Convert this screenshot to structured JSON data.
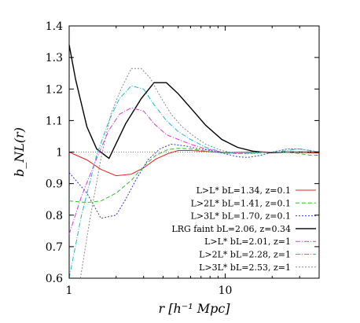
{
  "chart_data": {
    "type": "line",
    "xlabel": "r  [h⁻¹ Mpc]",
    "ylabel": "b_NL(r)",
    "x_scale": "log",
    "xlim": [
      1,
      40
    ],
    "ylim": [
      0.6,
      1.4
    ],
    "x_ticks": [
      1,
      10
    ],
    "x_tick_labels": [
      "1",
      "10"
    ],
    "y_ticks": [
      0.6,
      0.7,
      0.8,
      0.9,
      1.0,
      1.1,
      1.2,
      1.3,
      1.4
    ],
    "y_tick_labels": [
      "0.6",
      "0.7",
      "0.8",
      "0.9",
      "1",
      "1.1",
      "1.2",
      "1.3",
      "1.4"
    ],
    "reference_line": 1.0,
    "legend_position": "bottom-right",
    "series": [
      {
        "name": "L>L* bL=1.34, z=0.1",
        "color": "#e8211d",
        "dash": "solid",
        "x": [
          1.0,
          1.3,
          1.6,
          2.0,
          2.5,
          3.0,
          3.6,
          4.3,
          5.0,
          6.0,
          7.0,
          8.5,
          10,
          12,
          14,
          17,
          20,
          25,
          30,
          35,
          40
        ],
        "y": [
          1.0,
          0.975,
          0.945,
          0.925,
          0.93,
          0.95,
          0.978,
          0.995,
          1.005,
          1.005,
          1.003,
          1.0,
          0.998,
          0.999,
          1.0,
          1.001,
          1.0,
          1.0,
          0.999,
          0.998,
          0.997
        ]
      },
      {
        "name": "L>2L* bL=1.41, z=0.1",
        "color": "#2dbe2d",
        "dash": "dashed",
        "x": [
          1.0,
          1.3,
          1.6,
          2.0,
          2.5,
          3.0,
          3.6,
          4.3,
          5.0,
          6.0,
          7.0,
          8.5,
          10,
          12,
          14,
          17,
          20,
          25,
          30,
          35,
          40
        ],
        "y": [
          0.845,
          0.84,
          0.845,
          0.87,
          0.91,
          0.955,
          0.99,
          1.008,
          1.012,
          1.01,
          1.005,
          1.0,
          0.997,
          0.995,
          0.996,
          0.998,
          1.0,
          1.0,
          0.995,
          0.99,
          0.99
        ]
      },
      {
        "name": "L>3L* bL=1.70, z=0.1",
        "color": "#3535c8",
        "dash": "dotted",
        "x": [
          1.0,
          1.3,
          1.6,
          2.0,
          2.3,
          2.7,
          3.2,
          3.8,
          4.5,
          5.5,
          6.5,
          8.0,
          10,
          12,
          14,
          17,
          20,
          25,
          30,
          35,
          40
        ],
        "y": [
          0.935,
          0.87,
          0.79,
          0.8,
          0.85,
          0.915,
          0.975,
          1.01,
          1.025,
          1.02,
          1.012,
          1.005,
          0.995,
          0.985,
          0.983,
          0.99,
          1.0,
          1.01,
          1.01,
          1.005,
          1.0
        ]
      },
      {
        "name": "LRG faint bL=2.06, z=0.34",
        "color": "#000000",
        "dash": "solid",
        "x": [
          1.0,
          1.1,
          1.3,
          1.5,
          1.8,
          2.3,
          2.9,
          3.5,
          4.2,
          5.0,
          6.0,
          7.5,
          9.5,
          12,
          15,
          19,
          24,
          30,
          40
        ],
        "y": [
          1.34,
          1.23,
          1.08,
          1.01,
          0.98,
          1.09,
          1.17,
          1.22,
          1.22,
          1.185,
          1.14,
          1.085,
          1.04,
          1.015,
          1.003,
          0.998,
          1.0,
          1.0,
          1.0
        ]
      },
      {
        "name": "L>L* bL=2.01, z=1",
        "color": "#d63bd6",
        "dash": "dashdot",
        "x": [
          1.0,
          1.2,
          1.5,
          1.8,
          2.1,
          2.5,
          3.0,
          3.5,
          4.2,
          5.0,
          6.0,
          7.5,
          9.5,
          12,
          15,
          20,
          25,
          30,
          40
        ],
        "y": [
          0.74,
          0.86,
          0.98,
          1.07,
          1.12,
          1.14,
          1.13,
          1.09,
          1.055,
          1.04,
          1.025,
          1.01,
          1.0,
          0.998,
          1.0,
          1.0,
          1.0,
          1.0,
          1.0
        ]
      },
      {
        "name": "L>2L* bL=2.28, z=1",
        "color": "#1fb7d4",
        "dash": "dashdot",
        "x": [
          1.0,
          1.2,
          1.5,
          1.8,
          2.1,
          2.5,
          3.0,
          3.5,
          4.2,
          5.0,
          6.0,
          7.5,
          9.5,
          12,
          15,
          20,
          25,
          30,
          35,
          40
        ],
        "y": [
          0.6,
          0.8,
          0.99,
          1.1,
          1.17,
          1.21,
          1.2,
          1.15,
          1.1,
          1.065,
          1.04,
          1.015,
          1.0,
          0.995,
          0.997,
          1.0,
          1.005,
          1.01,
          1.005,
          1.0
        ]
      },
      {
        "name": "L>3L* bL=2.53, z=1",
        "color": "#888888",
        "dash": "dotted",
        "x": [
          1.18,
          1.35,
          1.6,
          1.85,
          2.15,
          2.5,
          2.9,
          3.3,
          3.8,
          4.5,
          5.3,
          6.3,
          7.5,
          9.5,
          12,
          15,
          20,
          25,
          30,
          40
        ],
        "y": [
          0.6,
          0.78,
          0.98,
          1.12,
          1.2,
          1.265,
          1.265,
          1.235,
          1.18,
          1.12,
          1.08,
          1.05,
          1.025,
          1.005,
          0.995,
          0.995,
          1.0,
          1.01,
          1.01,
          1.0
        ]
      }
    ]
  },
  "legend": {
    "entries": [
      {
        "html": "L&gt;L<tspan dy=\"-5\" font-size=\"8\">*</tspan><tspan dy=\"5\"> b</tspan><tspan dy=\"3\" font-size=\"8\">L</tspan><tspan dy=\"-3\">=1.34, z=0.1</tspan>"
      }
    ]
  }
}
